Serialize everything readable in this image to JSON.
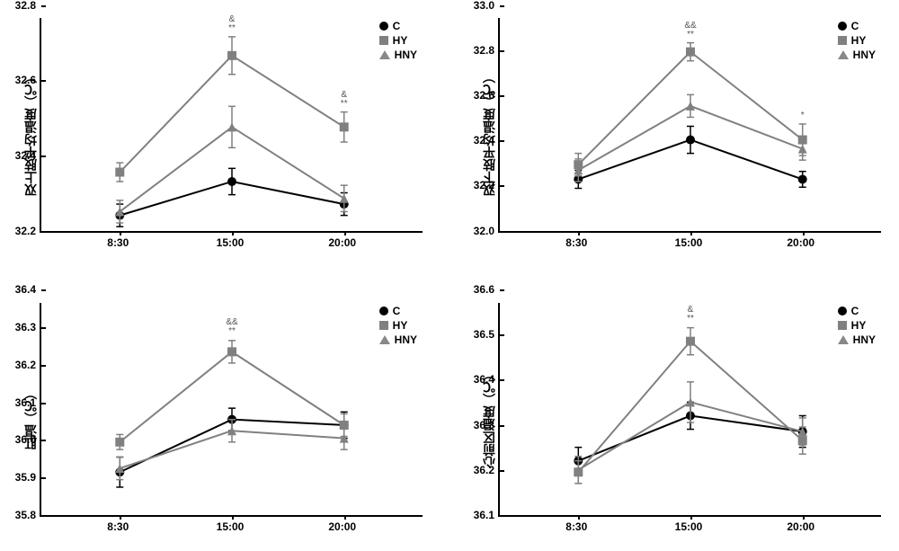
{
  "charts": [
    {
      "id": "upper-limbs",
      "ylabel": "双上肢平均温度（℃）",
      "ymin": 32.2,
      "ymax": 32.8,
      "ystep": 0.2,
      "xlabels": [
        "8:30",
        "15:00",
        "20:00"
      ],
      "series": [
        {
          "name": "C",
          "marker": "circle",
          "color": "#000000",
          "vals": [
            32.275,
            32.365,
            32.305
          ],
          "err": [
            0.03,
            0.035,
            0.03
          ]
        },
        {
          "name": "HY",
          "marker": "square",
          "color": "#808080",
          "vals": [
            32.39,
            32.7,
            32.51
          ],
          "err": [
            0.025,
            0.05,
            0.04
          ]
        },
        {
          "name": "HNY",
          "marker": "triangle",
          "color": "#808080",
          "vals": [
            32.285,
            32.51,
            32.32
          ],
          "err": [
            0.03,
            0.055,
            0.035
          ]
        }
      ],
      "annotations": [
        {
          "x": 1,
          "above": "HY",
          "text": "&\n**"
        },
        {
          "x": 2,
          "above": "HY",
          "text": "&\n**"
        }
      ],
      "legend": true
    },
    {
      "id": "lower-limbs",
      "ylabel": "双下肢平均温度（℃）",
      "ymin": 32.0,
      "ymax": 33.0,
      "ystep": 0.2,
      "xlabels": [
        "8:30",
        "15:00",
        "20:00"
      ],
      "series": [
        {
          "name": "C",
          "marker": "circle",
          "color": "#000000",
          "vals": [
            32.285,
            32.46,
            32.285
          ],
          "err": [
            0.04,
            0.06,
            0.035
          ]
        },
        {
          "name": "HY",
          "marker": "square",
          "color": "#808080",
          "vals": [
            32.35,
            32.85,
            32.46
          ],
          "err": [
            0.05,
            0.04,
            0.07
          ]
        },
        {
          "name": "HNY",
          "marker": "triangle",
          "color": "#808080",
          "vals": [
            32.325,
            32.61,
            32.42
          ],
          "err": [
            0.05,
            0.05,
            0.05
          ]
        }
      ],
      "annotations": [
        {
          "x": 1,
          "above": "HY",
          "text": "&&\n**"
        },
        {
          "x": 2,
          "above": "HY",
          "text": "*"
        }
      ],
      "legend": true
    },
    {
      "id": "rectal",
      "ylabel": "肛温（℃）",
      "ymin": 35.8,
      "ymax": 36.4,
      "ystep": 0.1,
      "xlabels": [
        "8:30",
        "15:00",
        "20:00"
      ],
      "series": [
        {
          "name": "C",
          "marker": "circle",
          "color": "#000000",
          "vals": [
            35.95,
            36.09,
            36.075
          ],
          "err": [
            0.04,
            0.03,
            0.035
          ]
        },
        {
          "name": "HY",
          "marker": "square",
          "color": "#808080",
          "vals": [
            36.03,
            36.27,
            36.075
          ],
          "err": [
            0.02,
            0.03,
            0.03
          ]
        },
        {
          "name": "HNY",
          "marker": "triangle",
          "color": "#808080",
          "vals": [
            35.96,
            36.06,
            36.04
          ],
          "err": [
            0.03,
            0.03,
            0.03
          ]
        }
      ],
      "annotations": [
        {
          "x": 1,
          "above": "HY",
          "text": "&&\n**"
        }
      ],
      "legend": true
    },
    {
      "id": "precordial",
      "ylabel": "心前区温度（℃）",
      "ymin": 36.1,
      "ymax": 36.6,
      "ystep": 0.1,
      "xlabels": [
        "8:30",
        "15:00",
        "20:00"
      ],
      "series": [
        {
          "name": "C",
          "marker": "circle",
          "color": "#000000",
          "vals": [
            36.25,
            36.35,
            36.315
          ],
          "err": [
            0.03,
            0.03,
            0.035
          ]
        },
        {
          "name": "HY",
          "marker": "square",
          "color": "#808080",
          "vals": [
            36.225,
            36.515,
            36.295
          ],
          "err": [
            0.025,
            0.03,
            0.03
          ]
        },
        {
          "name": "HNY",
          "marker": "triangle",
          "color": "#808080",
          "vals": [
            36.23,
            36.38,
            36.315
          ],
          "err": [
            0.03,
            0.045,
            0.03
          ]
        }
      ],
      "annotations": [
        {
          "x": 1,
          "above": "HY",
          "text": "&\n**"
        }
      ],
      "legend": true
    }
  ],
  "colors": {
    "axis": "#000000",
    "background": "#ffffff"
  },
  "marker_size": 5,
  "line_width": 2,
  "errbar_cap": 4
}
